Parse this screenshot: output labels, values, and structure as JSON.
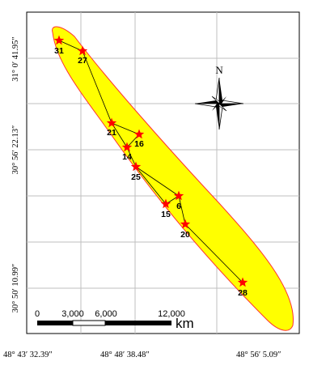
{
  "map": {
    "latitude_labels": [
      "31° 0′ 41.95″",
      "30° 56′ 22.13″",
      "30° 50′ 10.99″"
    ],
    "longitude_labels": [
      "48° 43′ 32.39″",
      "48° 48′ 38.48″",
      "48° 56′ 5.09″"
    ],
    "north_arrow": {
      "label": "N",
      "icon": "compass-rose-icon"
    },
    "scale_bar": {
      "ticks": [
        "0",
        "3,000",
        "6,000",
        "12,000"
      ],
      "unit": "km"
    },
    "colors": {
      "field_fill": "#ffff00",
      "field_outline": "#ff3030",
      "well_marker": "#ff0000",
      "connector_line": "#000000",
      "grid": "#bfbfbf",
      "frame": "#000000"
    },
    "wells": [
      {
        "id": "31"
      },
      {
        "id": "27"
      },
      {
        "id": "21"
      },
      {
        "id": "16"
      },
      {
        "id": "14"
      },
      {
        "id": "25"
      },
      {
        "id": "6"
      },
      {
        "id": "15"
      },
      {
        "id": "20"
      },
      {
        "id": "28"
      }
    ],
    "well_path": [
      "31",
      "27",
      "21",
      "14",
      "25",
      "6",
      "20",
      "28"
    ],
    "extra_links": [
      [
        "21",
        "16"
      ],
      [
        "16",
        "14"
      ],
      [
        "25",
        "15"
      ],
      [
        "15",
        "6"
      ]
    ]
  }
}
